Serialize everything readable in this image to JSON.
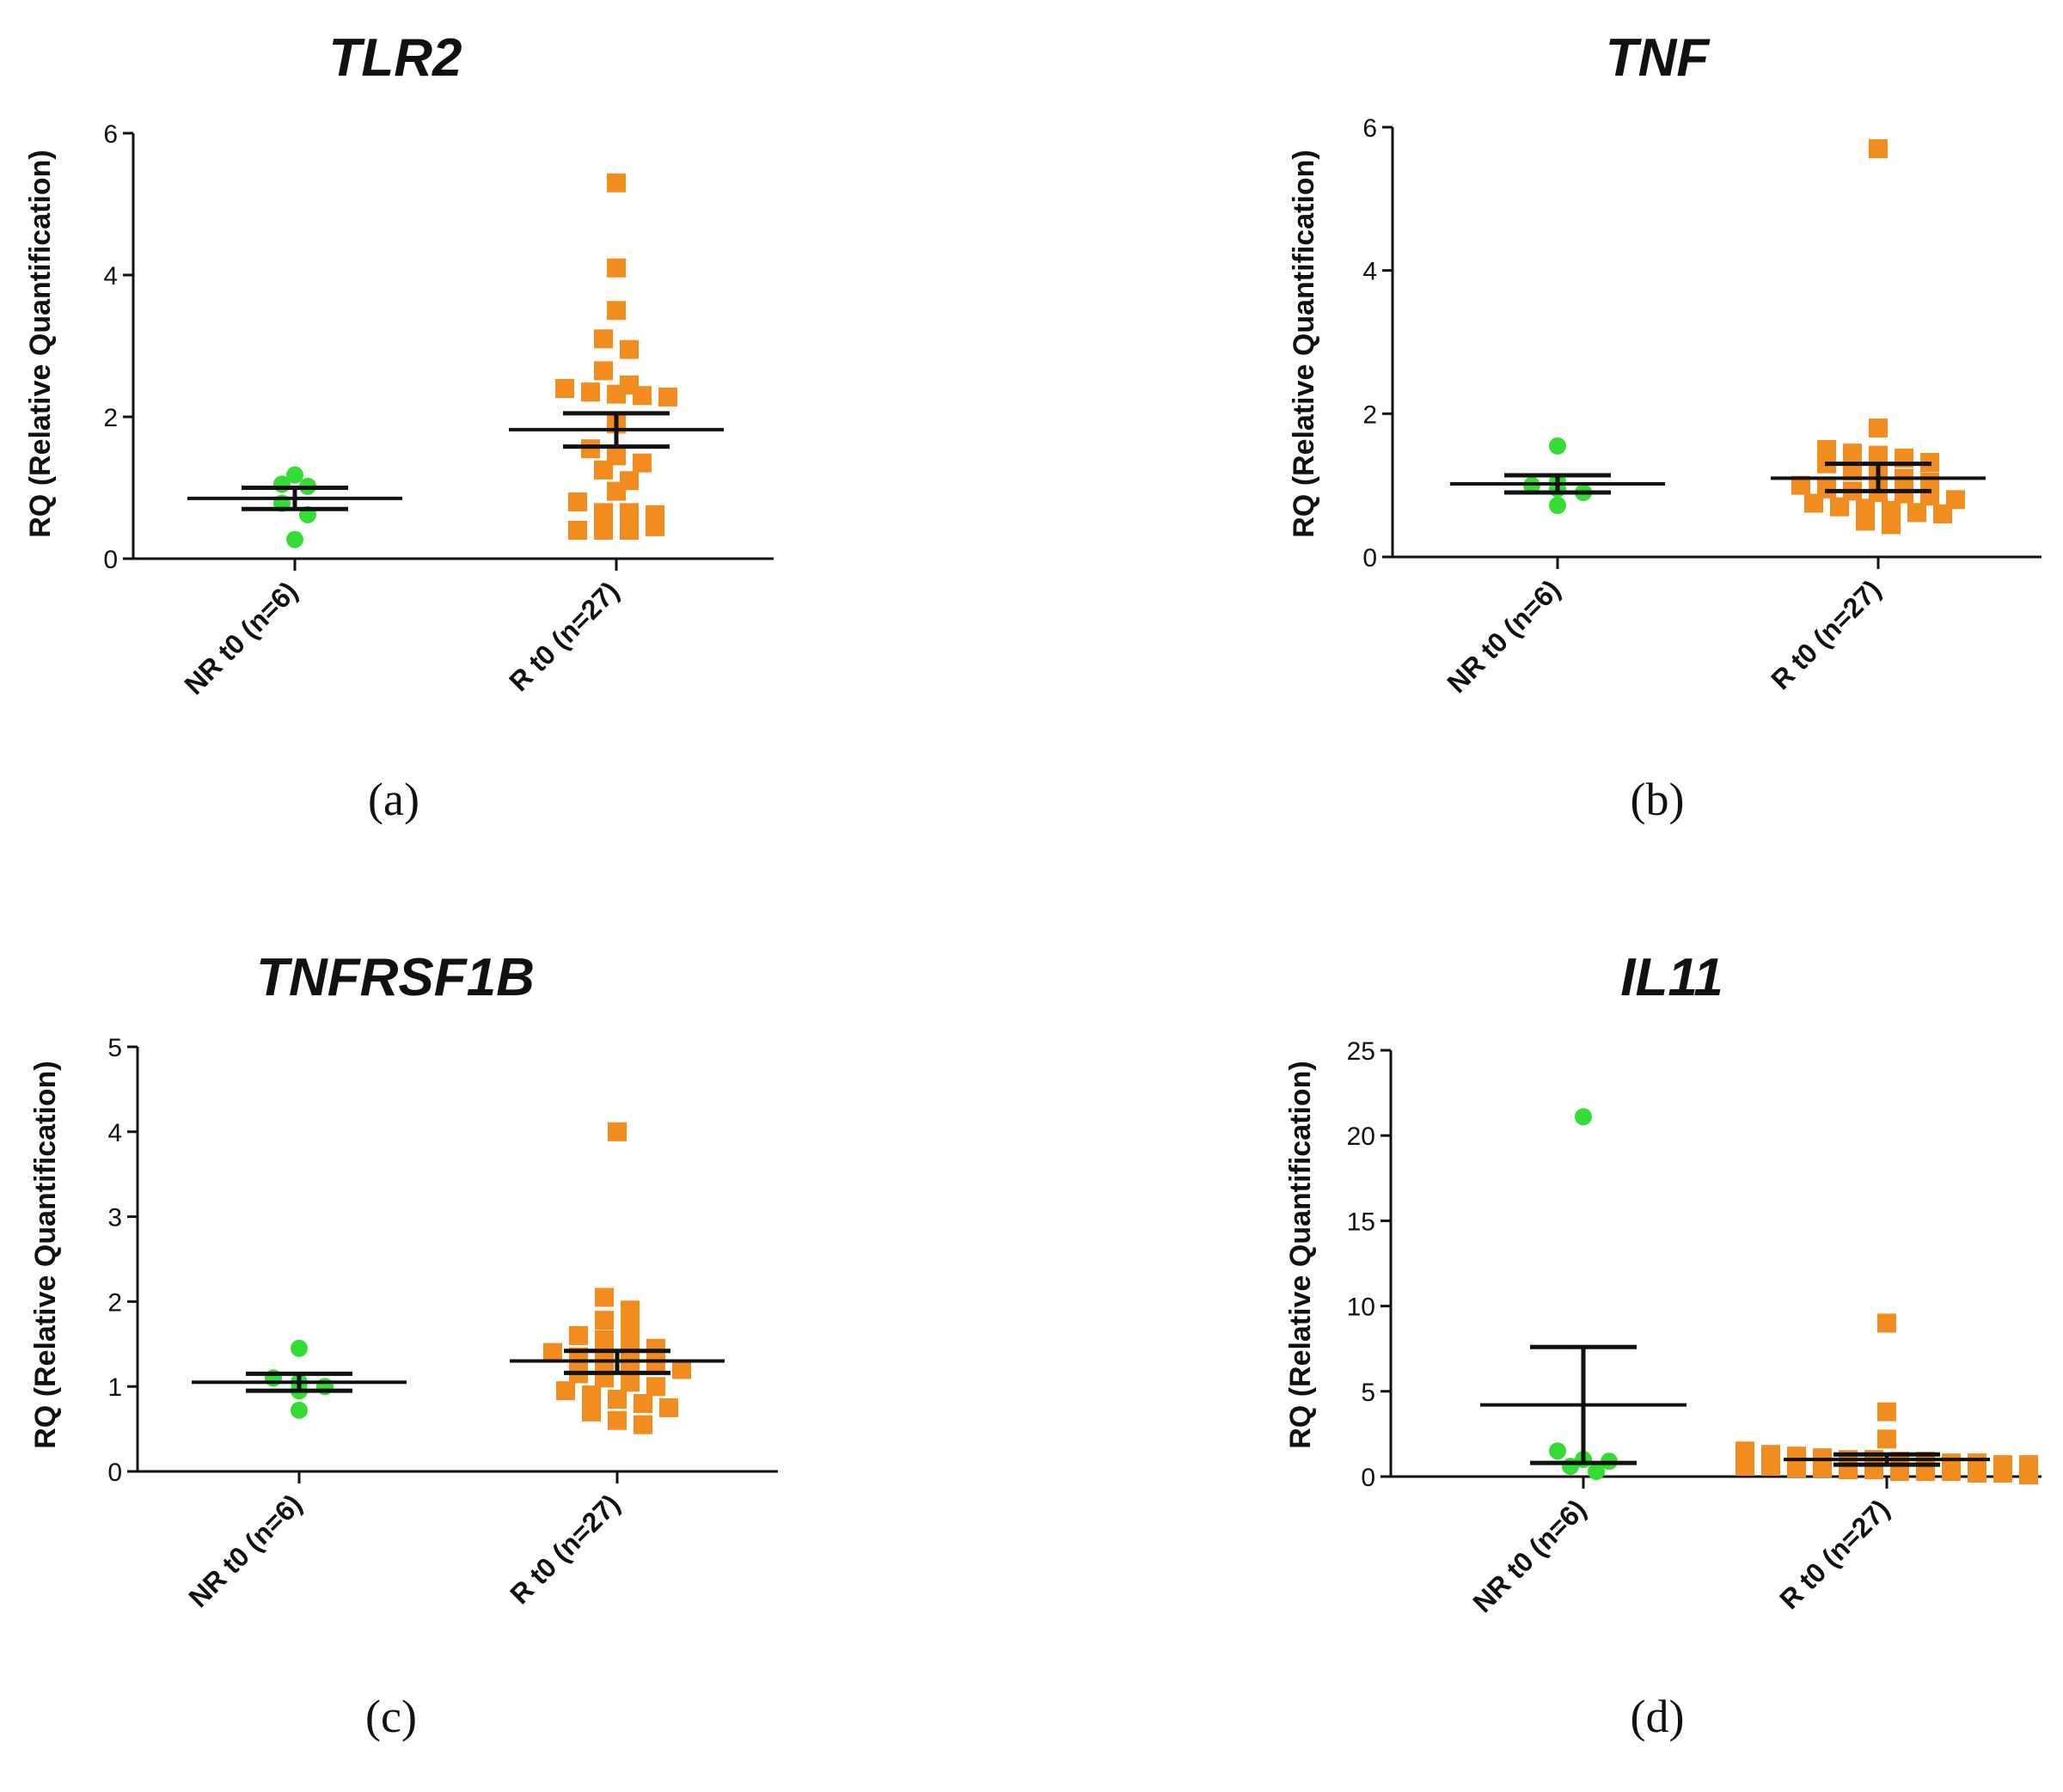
{
  "figure_description_none": null,
  "chart_data": [
    {
      "type": "scatter",
      "panel_label": "(a)",
      "title": "TLR2",
      "ylabel": "RQ (Relative Quantification)",
      "xlabel": "",
      "ylim": [
        0,
        6
      ],
      "yticks": [
        0,
        2,
        4,
        6
      ],
      "categories": [
        "NR t0 (n=6)",
        "R t0 (n=27)"
      ],
      "series": [
        {
          "name": "NR t0 (n=6)",
          "color": "#33dd33",
          "marker": "circle",
          "values": [
            1.18,
            1.05,
            1.02,
            0.78,
            0.62,
            0.27
          ],
          "mean": 0.85,
          "sem_low": 0.7,
          "sem_high": 1.0
        },
        {
          "name": "R t0 (n=27)",
          "color": "#f28c1e",
          "marker": "square",
          "values": [
            5.3,
            4.1,
            3.5,
            3.1,
            2.95,
            2.65,
            2.45,
            2.4,
            2.35,
            2.32,
            2.3,
            2.28,
            1.9,
            1.55,
            1.45,
            1.35,
            1.25,
            1.1,
            0.95,
            0.8,
            0.65,
            0.65,
            0.62,
            0.4,
            0.4,
            0.4,
            0.45
          ],
          "mean": 1.82,
          "sem_low": 1.58,
          "sem_high": 2.05
        }
      ]
    },
    {
      "type": "scatter",
      "panel_label": "(b)",
      "title": "TNF",
      "ylabel": "RQ (Relative Quantification)",
      "xlabel": "",
      "ylim": [
        0,
        6
      ],
      "yticks": [
        0,
        2,
        4,
        6
      ],
      "categories": [
        "NR t0 (n=6)",
        "R t0 (n=27)"
      ],
      "series": [
        {
          "name": "NR t0 (n=6)",
          "color": "#33dd33",
          "marker": "circle",
          "values": [
            1.55,
            1.05,
            1.0,
            0.95,
            0.9,
            0.72
          ],
          "mean": 1.02,
          "sem_low": 0.9,
          "sem_high": 1.14
        },
        {
          "name": "R t0 (n=27)",
          "color": "#f28c1e",
          "marker": "square",
          "values": [
            5.7,
            1.8,
            1.5,
            1.45,
            1.42,
            1.38,
            1.32,
            1.3,
            1.2,
            1.15,
            1.1,
            1.05,
            1.0,
            0.95,
            0.92,
            0.9,
            0.88,
            0.85,
            0.8,
            0.75,
            0.7,
            0.68,
            0.65,
            0.62,
            0.6,
            0.5,
            0.45
          ],
          "mean": 1.1,
          "sem_low": 0.92,
          "sem_high": 1.3
        }
      ]
    },
    {
      "type": "scatter",
      "panel_label": "(c)",
      "title": "TNFRSF1B",
      "ylabel": "RQ (Relative Quantification)",
      "xlabel": "",
      "ylim": [
        0,
        5
      ],
      "yticks": [
        0,
        1,
        2,
        3,
        4,
        5
      ],
      "categories": [
        "NR t0 (n=6)",
        "R t0 (n=27)"
      ],
      "series": [
        {
          "name": "NR t0 (n=6)",
          "color": "#33dd33",
          "marker": "circle",
          "values": [
            1.45,
            1.1,
            1.05,
            1.0,
            0.95,
            0.72
          ],
          "mean": 1.05,
          "sem_low": 0.95,
          "sem_high": 1.15
        },
        {
          "name": "R t0 (n=27)",
          "color": "#f28c1e",
          "marker": "square",
          "values": [
            4.0,
            2.05,
            1.9,
            1.78,
            1.7,
            1.6,
            1.55,
            1.5,
            1.45,
            1.4,
            1.35,
            1.3,
            1.28,
            1.25,
            1.2,
            1.15,
            1.1,
            1.05,
            1.0,
            0.95,
            0.9,
            0.85,
            0.8,
            0.75,
            0.7,
            0.6,
            0.55
          ],
          "mean": 1.3,
          "sem_low": 1.16,
          "sem_high": 1.42
        }
      ]
    },
    {
      "type": "scatter",
      "panel_label": "(d)",
      "title": "IL11",
      "ylabel": "RQ (Relative Quantification)",
      "xlabel": "",
      "ylim": [
        0,
        25
      ],
      "yticks": [
        0,
        5,
        10,
        15,
        20,
        25
      ],
      "categories": [
        "NR t0 (n=6)",
        "R t0 (n=27)"
      ],
      "series": [
        {
          "name": "NR t0 (n=6)",
          "color": "#33dd33",
          "marker": "circle",
          "values": [
            21.1,
            1.5,
            1.0,
            0.9,
            0.6,
            0.3
          ],
          "mean": 4.2,
          "sem_low": 0.8,
          "sem_high": 7.6
        },
        {
          "name": "R t0 (n=27)",
          "color": "#f28c1e",
          "marker": "square",
          "values": [
            9.0,
            3.8,
            2.2,
            1.5,
            1.3,
            1.2,
            1.1,
            1.0,
            1.0,
            0.9,
            0.9,
            0.8,
            0.8,
            0.7,
            0.7,
            0.6,
            0.6,
            0.5,
            0.5,
            0.4,
            0.4,
            0.3,
            0.3,
            0.3,
            0.2,
            0.2,
            0.1
          ],
          "mean": 1.0,
          "sem_low": 0.7,
          "sem_high": 1.3
        }
      ]
    }
  ]
}
